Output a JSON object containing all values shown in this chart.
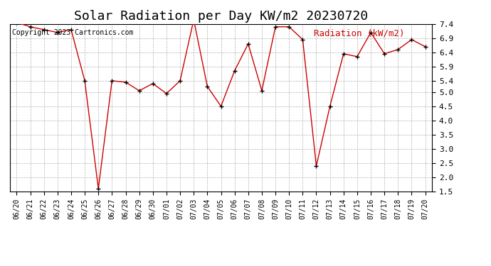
{
  "title": "Solar Radiation per Day KW/m2 20230720",
  "copyright_text": "Copyright 2023 Cartronics.com",
  "legend_label": "Radiation (kW/m2)",
  "dates": [
    "06/20",
    "06/21",
    "06/22",
    "06/23",
    "06/24",
    "06/25",
    "06/26",
    "06/27",
    "06/28",
    "06/29",
    "06/30",
    "07/01",
    "07/02",
    "07/03",
    "07/04",
    "07/05",
    "07/06",
    "07/07",
    "07/08",
    "07/09",
    "07/10",
    "07/11",
    "07/12",
    "07/13",
    "07/14",
    "07/15",
    "07/16",
    "07/17",
    "07/18",
    "07/19",
    "07/20"
  ],
  "values": [
    7.45,
    7.3,
    7.2,
    7.1,
    7.2,
    5.4,
    1.6,
    5.4,
    5.35,
    5.05,
    5.3,
    4.95,
    5.4,
    7.55,
    5.2,
    4.5,
    5.75,
    6.7,
    5.05,
    7.3,
    7.3,
    6.85,
    2.4,
    4.5,
    6.35,
    6.25,
    7.1,
    6.35,
    6.5,
    6.85,
    6.6
  ],
  "ylim_min": 1.5,
  "ylim_max": 7.4,
  "yticks": [
    1.5,
    2.0,
    2.5,
    3.0,
    3.5,
    4.0,
    4.5,
    5.0,
    5.4,
    5.9,
    6.4,
    6.9,
    7.4
  ],
  "ytick_labels": [
    "1.5",
    "2.0",
    "2.5",
    "3.0",
    "3.5",
    "4.0",
    "4.5",
    "5.0",
    "5.4",
    "5.9",
    "6.4",
    "6.9",
    "7.4"
  ],
  "line_color": "#cc0000",
  "marker_color": "#000000",
  "bg_color": "#ffffff",
  "title_fontsize": 13,
  "copyright_fontsize": 7,
  "legend_fontsize": 9,
  "tick_fontsize": 7,
  "legend_color": "#cc0000",
  "grid_color": "#aaaaaa"
}
